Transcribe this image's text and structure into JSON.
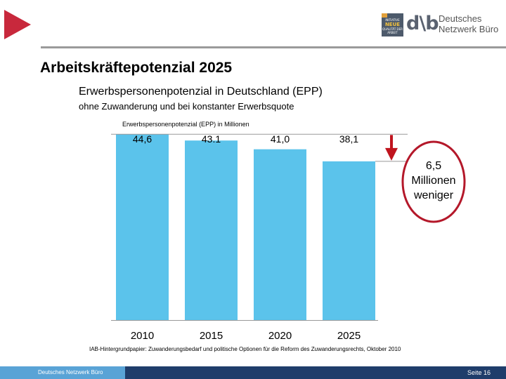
{
  "header": {
    "logo_badge_lines": [
      "INITIATIVE",
      "NEUE",
      "QUALITÄT DER",
      "ARBEIT"
    ],
    "logo_mark": "d\\b",
    "logo_text_line1": "Deutsches",
    "logo_text_line2": "Netzwerk Büro"
  },
  "slide_title": "Arbeitskräftepotenzial 2025",
  "chart_data": {
    "type": "bar",
    "title": "Erwerbspersonenpotenzial in Deutschland (EPP)",
    "subtitle": "ohne Zuwanderung und bei konstanter Erwerbsquote",
    "ylabel": "Erwerbspersonenpotenzial (EPP) in Millionen",
    "categories": [
      "2010",
      "2015",
      "2020",
      "2025"
    ],
    "values": [
      44.6,
      43.1,
      41.0,
      38.1
    ],
    "value_labels": [
      "44,6",
      "43.1",
      "41,0",
      "38,1"
    ],
    "ylim": [
      0,
      46
    ],
    "grid": false,
    "bar_color": "#5bc3eb",
    "annotation": {
      "lines": [
        "6,5",
        "Millionen",
        "weniger"
      ],
      "difference": 6.5,
      "arrow_color": "#c0141e",
      "ellipse_color": "#b4182a"
    }
  },
  "source": "IAB-Hintergrundpapier: Zuwanderungsbedarf und politische Optionen für die Reform des Zuwanderungsrechts, Oktober 2010",
  "footer": {
    "left_label": "Deutsches Netzwerk Büro",
    "page_label": "Seite 16",
    "left_color": "#59a3d6",
    "bar_color": "#1f3d6b"
  }
}
